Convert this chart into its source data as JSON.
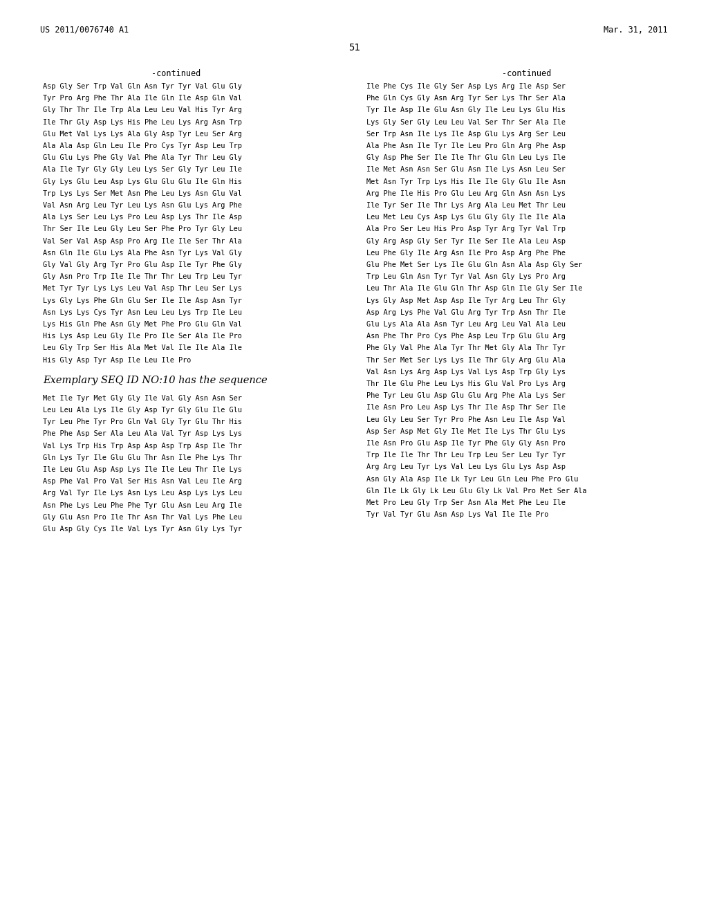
{
  "header_left": "US 2011/0076740 A1",
  "header_right": "Mar. 31, 2011",
  "page_number": "51",
  "background_color": "#ffffff",
  "text_color": "#000000",
  "left_col_title": "-continued",
  "right_col_title": "-continued",
  "left_lines": [
    "Asp Gly Ser Trp Val Gln Asn Tyr Tyr Val Glu Gly",
    "Tyr Pro Arg Phe Thr Ala Ile Gln Ile Asp Gln Val",
    "Gly Thr Thr Ile Trp Ala Leu Leu Val His Tyr Arg",
    "Ile Thr Gly Asp Lys His Phe Leu Lys Arg Asn Trp",
    "Glu Met Val Lys Lys Ala Gly Asp Tyr Leu Ser Arg",
    "Ala Ala Asp Gln Leu Ile Pro Cys Tyr Asp Leu Trp",
    "Glu Glu Lys Phe Gly Val Phe Ala Tyr Thr Leu Gly",
    "Ala Ile Tyr Gly Gly Leu Lys Ser Gly Tyr Leu Ile",
    "Gly Lys Glu Leu Asp Lys Glu Glu Glu Ile Gln His",
    "Trp Lys Lys Ser Met Asn Phe Leu Lys Asn Glu Val",
    "Val Asn Arg Leu Tyr Leu Lys Asn Glu Lys Arg Phe",
    "Ala Lys Ser Leu Lys Pro Leu Asp Lys Thr Ile Asp",
    "Thr Ser Ile Leu Gly Leu Ser Phe Pro Tyr Gly Leu",
    "Val Ser Val Asp Asp Pro Arg Ile Ile Ser Thr Ala",
    "Asn Gln Ile Glu Lys Ala Phe Asn Tyr Lys Val Gly",
    "Gly Val Gly Arg Tyr Pro Glu Asp Ile Tyr Phe Gly",
    "Gly Asn Pro Trp Ile Ile Thr Thr Leu Trp Leu Tyr",
    "Met Tyr Tyr Lys Lys Leu Val Asp Thr Leu Ser Lys",
    "Lys Gly Lys Phe Gln Glu Ser Ile Ile Asp Asn Tyr",
    "Asn Lys Lys Cys Tyr Asn Leu Leu Lys Trp Ile Leu",
    "Lys His Gln Phe Asn Gly Met Phe Pro Glu Gln Val",
    "His Lys Asp Leu Gly Ile Pro Ile Ser Ala Ile Pro",
    "Leu Gly Trp Ser His Ala Met Val Ile Ile Ala Ile",
    "His Gly Asp Tyr Asp Ile Leu Ile Pro"
  ],
  "section_title": "Exemplary SEQ ID NO:10 has the sequence",
  "seq_lines": [
    "Met Ile Tyr Met Gly Gly Ile Val Gly Asn Asn Ser",
    "Leu Leu Ala Lys Ile Gly Asp Tyr Gly Glu Ile Glu",
    "Tyr Leu Phe Tyr Pro Gln Val Gly Tyr Glu Thr His",
    "Phe Phe Asp Ser Ala Leu Ala Val Tyr Asp Lys Lys",
    "Val Lys Trp His Trp Asp Asp Asp Trp Asp Ile Thr",
    "Gln Lys Tyr Ile Glu Glu Thr Asn Ile Phe Lys Thr",
    "Ile Leu Glu Asp Asp Lys Ile Ile Leu Thr Ile Lys",
    "Asp Phe Val Pro Val Ser His Asn Val Leu Ile Arg",
    "Arg Val Tyr Ile Lys Asn Lys Leu Asp Lys Lys Leu",
    "Asn Phe Lys Leu Phe Phe Tyr Glu Asn Leu Arg Ile",
    "Gly Glu Asn Pro Ile Thr Asn Thr Val Lys Phe Leu",
    "Glu Asp Gly Cys Ile Val Lys Tyr Asn Gly Lys Tyr"
  ],
  "right_lines": [
    "Ile Phe Cys Ile Gly Ser Asp Lys Arg Ile Asp Ser",
    "Phe Gln Cys Gly Asn Arg Tyr Ser Lys Thr Ser Ala",
    "Tyr Ile Asp Ile Glu Asn Gly Ile Leu Lys Glu His",
    "Lys Gly Ser Gly Leu Leu Val Ser Thr Ser Ala Ile",
    "Ser Trp Asn Ile Lys Ile Asp Glu Lys Arg Ser Leu",
    "Ala Phe Asn Ile Tyr Ile Leu Pro Gln Arg Phe Asp",
    "Gly Asp Phe Ser Ile Ile Thr Glu Gln Leu Lys Ile",
    "Ile Met Asn Asn Ser Glu Asn Ile Lys Asn Leu Ser",
    "Met Asn Tyr Trp Lys His Ile Ile Gly Glu Ile Asn",
    "Arg Phe Ile His Pro Glu Leu Arg Gln Asn Asn Lys",
    "Ile Tyr Ser Ile Thr Lys Arg Ala Leu Met Thr Leu",
    "Leu Met Leu Cys Asp Lys Glu Gly Gly Ile Ile Ala",
    "Ala Pro Ser Leu His Pro Asp Tyr Arg Tyr Val Trp",
    "Gly Arg Asp Gly Ser Tyr Ile Ser Ile Ala Leu Asp",
    "Leu Phe Gly Ile Arg Asn Ile Pro Asp Arg Phe Phe",
    "Glu Phe Met Ser Lys Ile Glu Gln Asn Ala Asp Gly Ser",
    "Trp Leu Gln Asn Tyr Tyr Val Asn Gly Lys Pro Arg",
    "Leu Thr Ala Ile Glu Gln Thr Asp Gln Ile Gly Ser Ile",
    "Lys Gly Asp Met Asp Asp Ile Tyr Arg Leu Thr Gly",
    "Asp Arg Lys Phe Val Glu Arg Tyr Trp Asn Thr Ile",
    "Glu Lys Ala Ala Asn Tyr Leu Arg Leu Val Ala Leu",
    "Asn Phe Thr Pro Cys Phe Asp Leu Trp Glu Glu Arg",
    "Phe Gly Val Phe Ala Tyr Thr Met Gly Ala Thr Tyr",
    "Thr Ser Met Ser Lys Lys Ile Thr Gly Arg Glu Ala",
    "Val Asn Lys Arg Asp Lys Val Lys Asp Trp Gly Lys",
    "Thr Ile Glu Phe Leu Lys His Glu Val Pro Lys Arg",
    "Phe Tyr Leu Glu Asp Glu Glu Arg Phe Ala Lys Ser",
    "Ile Asn Pro Leu Asp Lys Thr Ile Asp Thr Ser Ile",
    "Leu Gly Leu Ser Tyr Pro Phe Asn Leu Ile Asp Val",
    "Asp Ser Asp Met Gly Ile Met Ile Lys Thr Glu Lys",
    "Ile Asn Pro Glu Asp Ile Tyr Phe Gly Gly Asn Pro",
    "Trp Ile Ile Thr Thr Leu Trp Leu Ser Leu Tyr Tyr",
    "Arg Arg Leu Tyr Lys Val Leu Lys Glu Lys Asp Asp",
    "Asn Gly Ala Asp Ile Lk Tyr Leu Gln Leu Phe Pro Glu",
    "Gln Ile Lk Gly Lk Leu Glu Gly Lk Val Pro Met Ser Ala",
    "Met Pro Leu Gly Trp Ser Asn Ala Met Phe Leu Ile",
    "Tyr Val Tyr Glu Asn Asp Lys Val Ile Ile Pro"
  ]
}
